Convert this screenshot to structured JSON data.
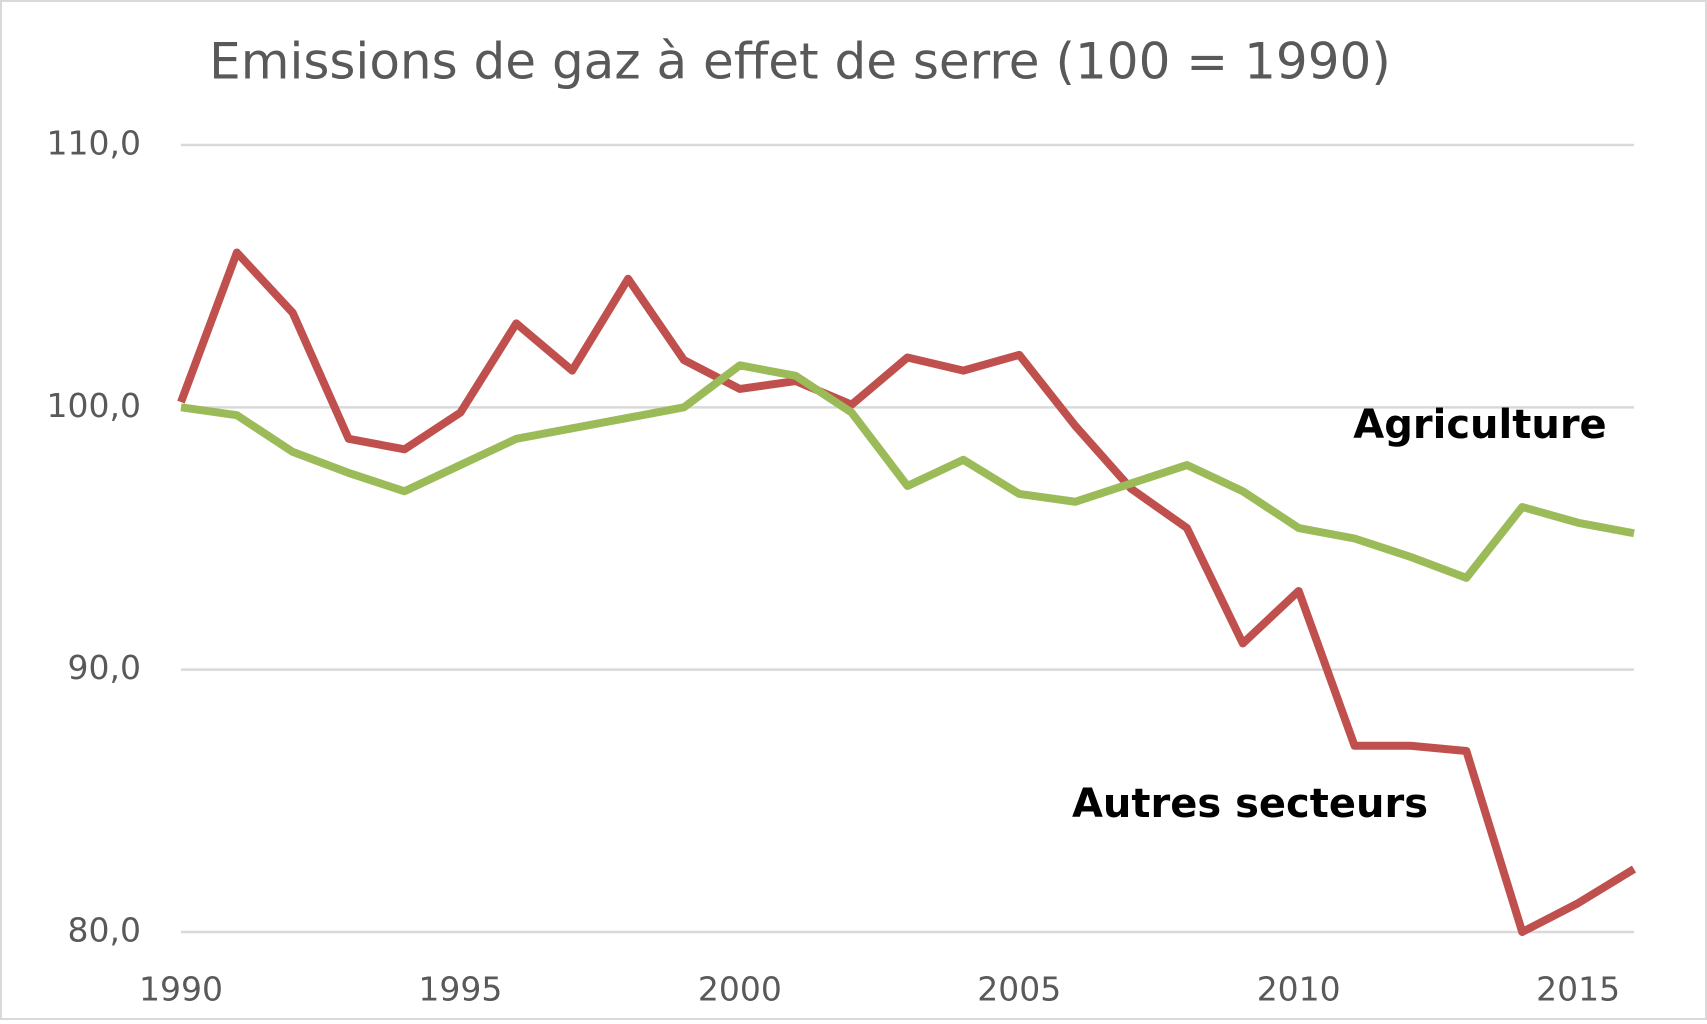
{
  "chart_data": {
    "type": "line",
    "title": "Emissions de gaz à effet de serre (100 = 1990)",
    "x": [
      1990,
      1991,
      1992,
      1993,
      1994,
      1995,
      1996,
      1997,
      1998,
      1999,
      2000,
      2001,
      2002,
      2003,
      2004,
      2005,
      2006,
      2007,
      2008,
      2009,
      2010,
      2011,
      2012,
      2013,
      2014,
      2015,
      2016
    ],
    "series": [
      {
        "name": "Autres secteurs",
        "color": "#c0504d",
        "values": [
          100.2,
          105.9,
          103.6,
          98.8,
          98.4,
          99.8,
          103.2,
          101.4,
          104.9,
          101.8,
          100.7,
          101.0,
          100.1,
          101.9,
          101.4,
          102.0,
          99.3,
          96.9,
          95.4,
          91.0,
          93.0,
          87.1,
          87.1,
          86.9,
          80.0,
          81.1,
          82.4
        ]
      },
      {
        "name": "Agriculture",
        "color": "#9bbb59",
        "values": [
          100.0,
          99.7,
          98.3,
          97.5,
          96.8,
          97.8,
          98.8,
          99.2,
          99.6,
          100.0,
          101.6,
          101.2,
          99.8,
          97.0,
          98.0,
          96.7,
          96.4,
          97.1,
          97.8,
          96.8,
          95.4,
          95.0,
          94.3,
          93.5,
          96.2,
          95.6,
          95.2
        ]
      }
    ],
    "xlim": [
      1990,
      2016
    ],
    "xticks": [
      1990,
      1995,
      2000,
      2005,
      2010,
      2015
    ],
    "ylim": [
      80,
      110
    ],
    "yticks": [
      {
        "value": 80,
        "label": "80,0"
      },
      {
        "value": 90,
        "label": "90,0"
      },
      {
        "value": 100,
        "label": "100,0"
      },
      {
        "value": 110,
        "label": "110,0"
      }
    ],
    "grid": true
  }
}
